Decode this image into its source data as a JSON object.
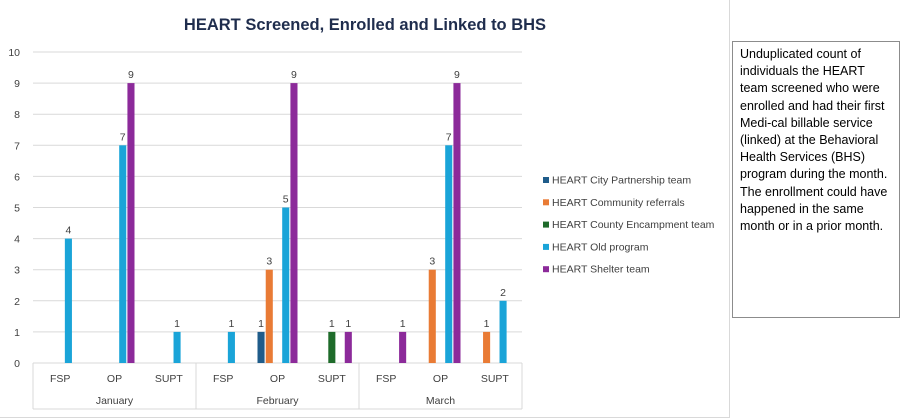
{
  "chart_data": {
    "type": "bar",
    "title": "HEART Screened, Enrolled and Linked to BHS",
    "ylim": [
      0,
      10
    ],
    "yticks": [
      0,
      1,
      2,
      3,
      4,
      5,
      6,
      7,
      8,
      9,
      10
    ],
    "groups": [
      "January",
      "February",
      "March"
    ],
    "subcategories": [
      "FSP",
      "OP",
      "SUPT"
    ],
    "series": [
      {
        "name": "HEART City Partnership team",
        "color": "#1f5c8a",
        "values": [
          [
            null,
            null,
            null
          ],
          [
            null,
            1,
            null
          ],
          [
            null,
            null,
            null
          ]
        ]
      },
      {
        "name": "HEART Community referrals",
        "color": "#e97b35",
        "values": [
          [
            null,
            null,
            null
          ],
          [
            null,
            3,
            null
          ],
          [
            null,
            3,
            1
          ]
        ]
      },
      {
        "name": "HEART County Encampment team",
        "color": "#1e6b2a",
        "values": [
          [
            null,
            null,
            null
          ],
          [
            null,
            null,
            1
          ],
          [
            null,
            null,
            null
          ]
        ]
      },
      {
        "name": "HEART Old program",
        "color": "#1aa4d8",
        "values": [
          [
            4,
            7,
            1
          ],
          [
            1,
            5,
            null
          ],
          [
            null,
            7,
            2
          ]
        ]
      },
      {
        "name": "HEART Shelter team",
        "color": "#8c2a9a",
        "values": [
          [
            null,
            9,
            null
          ],
          [
            null,
            9,
            1
          ],
          [
            1,
            9,
            null
          ]
        ]
      }
    ],
    "legend_position": "right"
  },
  "note": "Unduplicated count of individuals the HEART team screened who were enrolled and had their first Medi-cal billable service (linked) at the Behavioral Health Services (BHS) program during the month. The enrollment could have happened in the same month or in a prior month."
}
